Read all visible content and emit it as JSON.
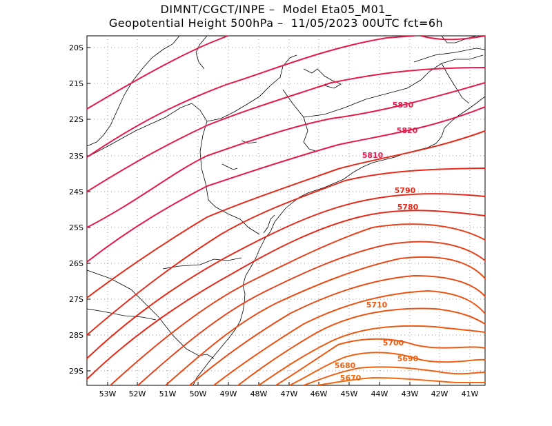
{
  "title": {
    "line1": "DIMNT/CGCT/INPE –  Model Eta05_M01_",
    "line2": "Geopotential Height 500hPa –  11/05/2023 00UTC fct=6h"
  },
  "lat_labels": [
    "20S",
    "21S",
    "22S",
    "23S",
    "24S",
    "25S",
    "26S",
    "27S",
    "28S",
    "29S"
  ],
  "lon_labels": [
    "53W",
    "52W",
    "51W",
    "50W",
    "49W",
    "48W",
    "47W",
    "46W",
    "45W",
    "44W",
    "43W",
    "42W",
    "41W"
  ],
  "contour_labels": [
    "5830",
    "5820",
    "5810",
    "5790",
    "5780",
    "5710",
    "5700",
    "5690",
    "5680",
    "5670"
  ],
  "colors": {
    "contour_high": "#e8194a",
    "contour_mid": "#e62a1a",
    "contour_low": "#f06010",
    "coast": "#000000",
    "grid": "#999999"
  }
}
